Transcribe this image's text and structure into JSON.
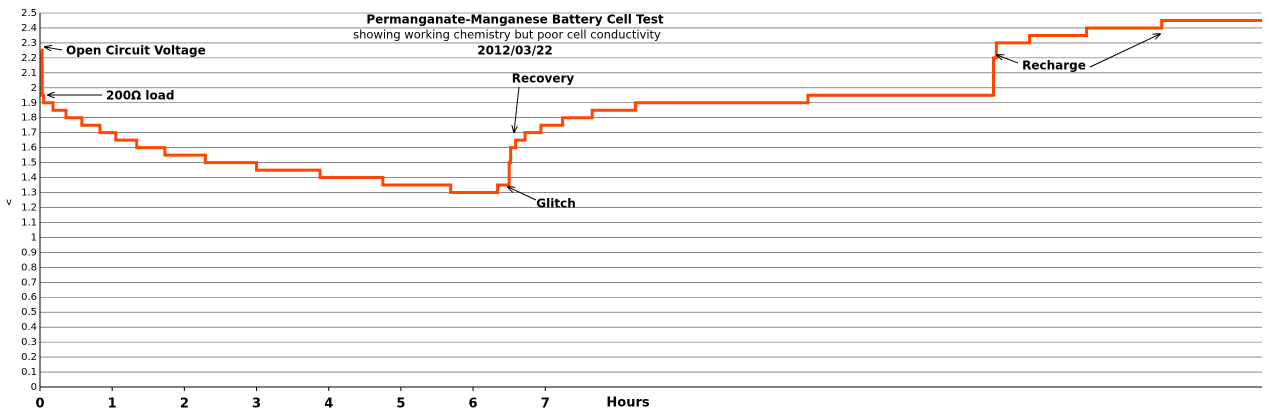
{
  "chart_data": {
    "type": "line",
    "drawstyle": "steps-post",
    "title": "Permanganate-Manganese Battery Cell Test",
    "subtitle": "showing working chemistry but  poor cell conductivity",
    "date": "2012/03/22",
    "xlabel": "Hours",
    "ylabel": "v",
    "annotations": [
      "Open Circuit Voltage",
      "200Ω load",
      "Recovery",
      "Glitch",
      "Recharge"
    ],
    "xlim": [
      0,
      16.93
    ],
    "ylim": [
      0,
      2.5
    ],
    "xticks": [
      0,
      1,
      2,
      3,
      4,
      5,
      6,
      7
    ],
    "yticks": [
      0,
      0.1,
      0.2,
      0.3,
      0.4,
      0.5,
      0.6,
      0.7,
      0.8,
      0.9,
      1,
      1.1,
      1.2,
      1.3,
      1.4,
      1.5,
      1.6,
      1.7,
      1.8,
      1.9,
      2,
      2.1,
      2.2,
      2.3,
      2.4,
      2.5
    ],
    "grid": true,
    "series": [
      {
        "color": "#ff4500",
        "x": [
          0,
          0.03,
          0.05,
          0.18,
          0.36,
          0.58,
          0.83,
          1.05,
          1.34,
          1.73,
          2.29,
          3.0,
          3.88,
          4.75,
          5.69,
          6.34,
          6.5,
          6.52,
          6.59,
          6.72,
          6.94,
          7.24,
          7.65,
          8.25,
          10.64,
          13.21,
          13.25,
          13.71,
          14.5,
          15.54,
          16.93
        ],
        "values": [
          2.25,
          1.95,
          1.9,
          1.85,
          1.8,
          1.75,
          1.7,
          1.65,
          1.6,
          1.55,
          1.5,
          1.45,
          1.4,
          1.35,
          1.3,
          1.35,
          1.5,
          1.6,
          1.65,
          1.7,
          1.75,
          1.8,
          1.85,
          1.9,
          1.95,
          2.2,
          2.3,
          2.35,
          2.4,
          2.45,
          2.45
        ]
      }
    ]
  }
}
